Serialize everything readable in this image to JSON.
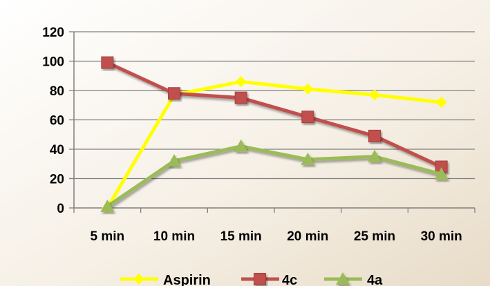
{
  "chart_data": {
    "type": "line",
    "categories": [
      "5 min",
      "10 min",
      "15 min",
      "20 min",
      "25 min",
      "30 min"
    ],
    "series": [
      {
        "name": "Aspirin",
        "values": [
          0,
          77,
          86,
          81,
          77,
          72
        ],
        "color": "#ffff00",
        "marker": "diamond"
      },
      {
        "name": "4c",
        "values": [
          99,
          78,
          75,
          62,
          49,
          28
        ],
        "color": "#c0504d",
        "marker": "square"
      },
      {
        "name": "4a",
        "values": [
          1,
          32,
          42,
          33,
          35,
          23
        ],
        "color": "#9bbb59",
        "marker": "triangle"
      }
    ],
    "yticks": [
      0,
      20,
      40,
      60,
      80,
      100,
      120
    ],
    "ylim": [
      0,
      120
    ],
    "grid": true,
    "legend_position": "bottom"
  }
}
